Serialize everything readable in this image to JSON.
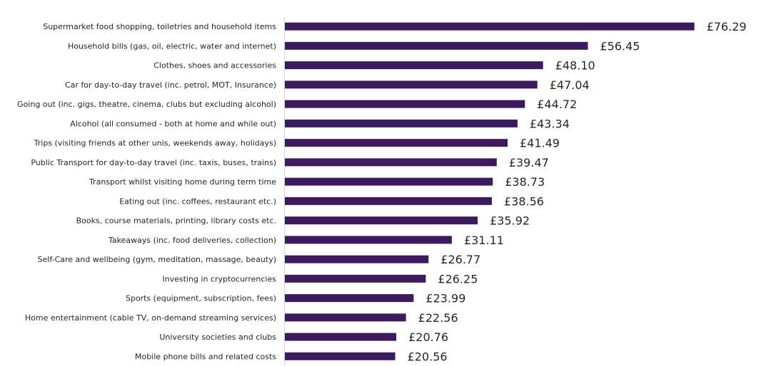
{
  "chart_data": {
    "type": "bar",
    "orientation": "horizontal",
    "title": "",
    "xlabel": "",
    "ylabel": "",
    "currency_symbol": "£",
    "xlim": [
      0,
      80
    ],
    "grid": false,
    "legend": "none",
    "bar_color": "#3d1a5f",
    "categories": [
      "Supermarket food shopping, toiletries and household items",
      "Household bills (gas, oil, electric, water and internet)",
      "Clothes, shoes and accessories",
      "Car for day-to-day travel (inc. petrol, MOT, Insurance)",
      "Going out (inc. gigs, theatre, cinema, clubs but excluding alcohol)",
      "Alcohol (all consumed - both at home and while out)",
      "Trips (visiting friends at other unis, weekends away, holidays)",
      "Public Transport for day-to-day travel (inc. taxis, buses, trains)",
      "Transport whilst visiting home during term time",
      "Eating out (inc. coffees, restaurant etc.)",
      "Books, course materials, printing, library costs etc.",
      "Takeaways (inc. food deliveries, collection)",
      "Self-Care and wellbeing (gym, meditation, massage, beauty)",
      "Investing in cryptocurrencies",
      "Sports (equipment, subscription, fees)",
      "Home entertainment (cable TV, on-demand streaming services)",
      "University societies and clubs",
      "Mobile phone bills and related costs"
    ],
    "values": [
      76.29,
      56.45,
      48.1,
      47.04,
      44.72,
      43.34,
      41.49,
      39.47,
      38.73,
      38.56,
      35.92,
      31.11,
      26.77,
      26.25,
      23.99,
      22.56,
      20.76,
      20.56
    ],
    "value_labels": [
      "£76.29",
      "£56.45",
      "£48.10",
      "£47.04",
      "£44.72",
      "£43.34",
      "£41.49",
      "£39.47",
      "£38.73",
      "£38.56",
      "£35.92",
      "£31.11",
      "£26.77",
      "£26.25",
      "£23.99",
      "£22.56",
      "£20.76",
      "£20.56"
    ]
  }
}
